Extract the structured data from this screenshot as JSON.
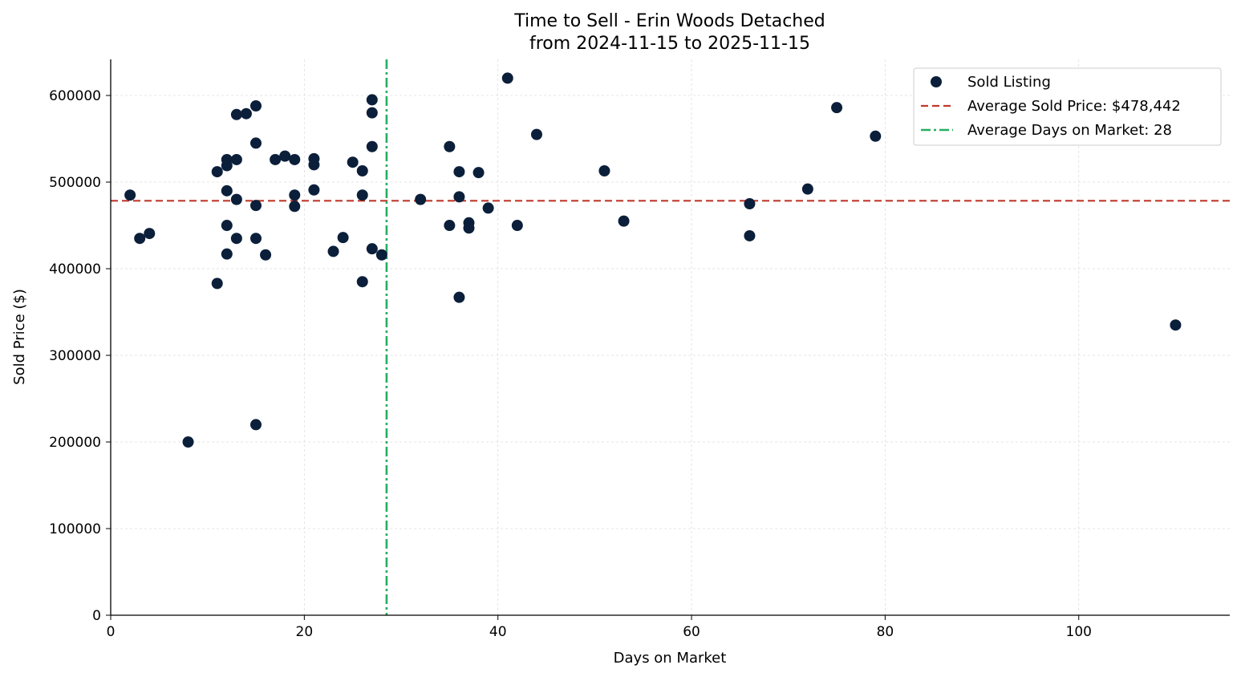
{
  "chart_data": {
    "type": "scatter",
    "title": "Time to Sell - Erin Woods Detached",
    "subtitle": "from 2024-11-15 to 2025-11-15",
    "xlabel": "Days on Market",
    "ylabel": "Sold Price ($)",
    "xlim": [
      0,
      115.6
    ],
    "ylim": [
      0,
      641700
    ],
    "xticks": [
      0,
      20,
      40,
      60,
      80,
      100
    ],
    "yticks": [
      0,
      100000,
      200000,
      300000,
      400000,
      500000,
      600000
    ],
    "grid": true,
    "legend_position": "top-right",
    "colors": {
      "points": "#0b1f3a",
      "avg_price": "#c0392b",
      "avg_days": "#27ae60"
    },
    "legend": [
      "Sold Listing",
      "Average Sold Price: $478,442",
      "Average Days on Market: 28"
    ],
    "avg_price": 478442,
    "avg_days": 28.5,
    "points": [
      [
        2,
        485000
      ],
      [
        3,
        435000
      ],
      [
        4,
        440700
      ],
      [
        8,
        200000
      ],
      [
        11,
        512000
      ],
      [
        11,
        383000
      ],
      [
        12,
        526000
      ],
      [
        12,
        519000
      ],
      [
        12,
        490000
      ],
      [
        12,
        450000
      ],
      [
        12,
        417000
      ],
      [
        13,
        578000
      ],
      [
        13,
        526000
      ],
      [
        13,
        480000
      ],
      [
        13,
        435000
      ],
      [
        14,
        579000
      ],
      [
        15,
        588000
      ],
      [
        15,
        545000
      ],
      [
        15,
        473000
      ],
      [
        15,
        435000
      ],
      [
        15,
        220000
      ],
      [
        16,
        416000
      ],
      [
        17,
        526000
      ],
      [
        18,
        530000
      ],
      [
        19,
        526000
      ],
      [
        19,
        485000
      ],
      [
        19,
        472000
      ],
      [
        21,
        527000
      ],
      [
        21,
        520000
      ],
      [
        21,
        491000
      ],
      [
        23,
        420000
      ],
      [
        24,
        436000
      ],
      [
        25,
        523000
      ],
      [
        26,
        513000
      ],
      [
        26,
        485000
      ],
      [
        26,
        385000
      ],
      [
        27,
        595000
      ],
      [
        27,
        580000
      ],
      [
        27,
        541000
      ],
      [
        27,
        423000
      ],
      [
        28,
        416000
      ],
      [
        32,
        480000
      ],
      [
        35,
        541000
      ],
      [
        35,
        450000
      ],
      [
        36,
        512000
      ],
      [
        36,
        483000
      ],
      [
        36,
        367000
      ],
      [
        37,
        453000
      ],
      [
        37,
        447000
      ],
      [
        38,
        511000
      ],
      [
        39,
        470000
      ],
      [
        41,
        620000
      ],
      [
        42,
        450000
      ],
      [
        44,
        555000
      ],
      [
        51,
        513000
      ],
      [
        53,
        455000
      ],
      [
        66,
        475000
      ],
      [
        66,
        438000
      ],
      [
        72,
        492000
      ],
      [
        75,
        586000
      ],
      [
        79,
        553000
      ],
      [
        110,
        335000
      ]
    ]
  }
}
